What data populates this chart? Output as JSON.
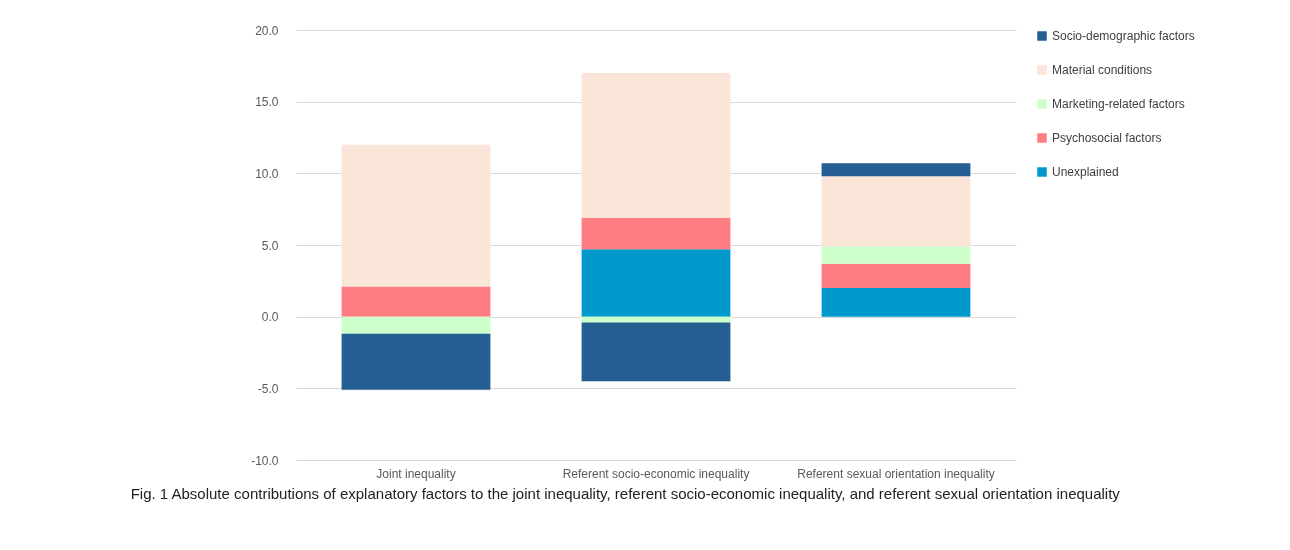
{
  "chart_data": {
    "type": "bar",
    "stacked": true,
    "categories": [
      "Joint inequality",
      "Referent socio-economic inequality",
      "Referent sexual orientation inequality"
    ],
    "series": [
      {
        "name": "Unexplained",
        "color": "#0099cc",
        "values": [
          0,
          4.7,
          2.0
        ]
      },
      {
        "name": "Psychosocial factors",
        "color": "#ff7c80",
        "values": [
          2.1,
          2.2,
          1.7
        ]
      },
      {
        "name": "Marketing-related factors",
        "color": "#ccffcc",
        "values": [
          -1.2,
          -0.4,
          1.2
        ]
      },
      {
        "name": "Material conditions",
        "color": "#fae5d9",
        "values": [
          9.9,
          10.1,
          4.9
        ]
      },
      {
        "name": "Socio-demographic factors",
        "color": "#255e91",
        "values": [
          -3.9,
          -4.1,
          0.9
        ]
      }
    ],
    "ylim": [
      -10,
      20
    ],
    "yticks": [
      {
        "value": -10,
        "label": "-10.0"
      },
      {
        "value": -5,
        "label": "-5.0"
      },
      {
        "value": 0,
        "label": "0.0"
      },
      {
        "value": 5,
        "label": "5.0"
      },
      {
        "value": 10,
        "label": "10.0"
      },
      {
        "value": 15,
        "label": "15.0"
      },
      {
        "value": 20,
        "label": "20.0"
      }
    ],
    "grid": "y",
    "legend": "right",
    "annotations": [
      "Fig. 1 Absolute contributions of explanatory factors to the joint inequality, referent socio-economic inequality, and referent sexual orientation inequality"
    ]
  }
}
